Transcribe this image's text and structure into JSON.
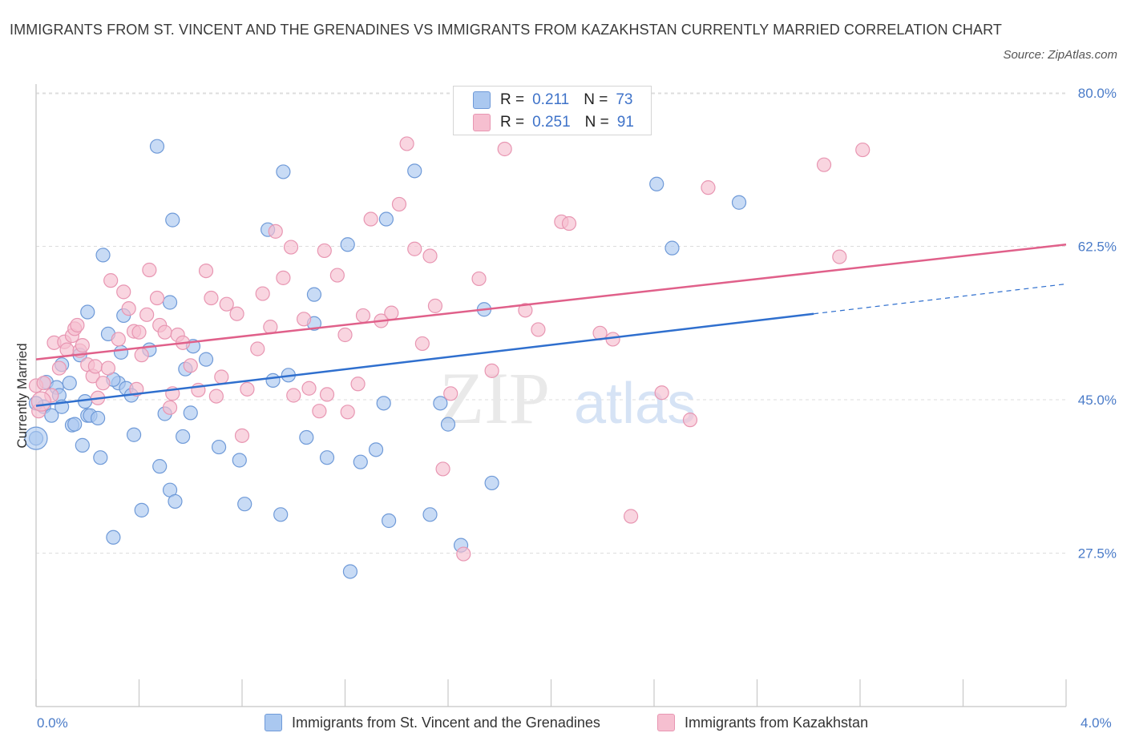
{
  "title": "IMMIGRANTS FROM ST. VINCENT AND THE GRENADINES VS IMMIGRANTS FROM KAZAKHSTAN CURRENTLY MARRIED CORRELATION CHART",
  "source": "Source: ZipAtlas.com",
  "watermark": {
    "zip": "ZIP",
    "atlas": "atlas"
  },
  "legend": {
    "blue": {
      "r_label": "R =",
      "r_value": "0.211",
      "n_label": "N =",
      "n_value": "73"
    },
    "pink": {
      "r_label": "R =",
      "r_value": "0.251",
      "n_label": "N =",
      "n_value": "91"
    }
  },
  "colors": {
    "blue_fill": "#aac8f0",
    "blue_stroke": "#6f9ad8",
    "blue_line": "#2f6fce",
    "pink_fill": "#f6bfd0",
    "pink_stroke": "#e896b2",
    "pink_line": "#e0608a",
    "tick_label": "#4a7bc8",
    "grid": "#dddddd"
  },
  "chart_data": {
    "type": "scatter",
    "title": "IMMIGRANTS FROM ST. VINCENT AND THE GRENADINES VS IMMIGRANTS FROM KAZAKHSTAN CURRENTLY MARRIED CORRELATION CHART",
    "xlabel": "",
    "ylabel": "Currently Married",
    "xlim": [
      0,
      4
    ],
    "ylim": [
      10,
      81
    ],
    "x_tick_labels": [
      "0.0%",
      "4.0%"
    ],
    "y_ticks": [
      80,
      62.5,
      45,
      27.5
    ],
    "y_tick_labels": [
      "80.0%",
      "62.5%",
      "45.0%",
      "27.5%"
    ],
    "grid": true,
    "legend_position": "top-center",
    "series": [
      {
        "name": "Immigrants from St. Vincent and the Grenadines",
        "color": "#aac8f0",
        "r": 0.211,
        "n": 73,
        "trend": {
          "x": [
            0.0,
            3.02
          ],
          "y": [
            44.3,
            54.8
          ],
          "dashed_to": [
            4.0,
            58.2
          ]
        },
        "points": [
          [
            0.0,
            40.6
          ],
          [
            0.03,
            44.2
          ],
          [
            0.04,
            47.0
          ],
          [
            0.06,
            43.2
          ],
          [
            0.08,
            46.4
          ],
          [
            0.09,
            45.5
          ],
          [
            0.1,
            44.2
          ],
          [
            0.13,
            46.9
          ],
          [
            0.14,
            42.1
          ],
          [
            0.15,
            42.2
          ],
          [
            0.17,
            50.1
          ],
          [
            0.18,
            39.8
          ],
          [
            0.19,
            44.8
          ],
          [
            0.2,
            43.2
          ],
          [
            0.21,
            43.2
          ],
          [
            0.24,
            42.9
          ],
          [
            0.25,
            38.4
          ],
          [
            0.26,
            61.5
          ],
          [
            0.28,
            52.5
          ],
          [
            0.3,
            29.3
          ],
          [
            0.32,
            46.9
          ],
          [
            0.33,
            50.4
          ],
          [
            0.34,
            54.6
          ],
          [
            0.35,
            46.3
          ],
          [
            0.37,
            45.5
          ],
          [
            0.41,
            32.4
          ],
          [
            0.44,
            50.7
          ],
          [
            0.47,
            73.9
          ],
          [
            0.48,
            37.4
          ],
          [
            0.5,
            43.4
          ],
          [
            0.52,
            56.1
          ],
          [
            0.52,
            34.7
          ],
          [
            0.53,
            65.5
          ],
          [
            0.54,
            33.4
          ],
          [
            0.57,
            40.8
          ],
          [
            0.58,
            48.5
          ],
          [
            0.6,
            43.5
          ],
          [
            0.61,
            51.1
          ],
          [
            0.66,
            49.6
          ],
          [
            0.71,
            39.6
          ],
          [
            0.79,
            38.1
          ],
          [
            0.81,
            33.1
          ],
          [
            0.9,
            64.4
          ],
          [
            0.92,
            47.2
          ],
          [
            0.95,
            31.9
          ],
          [
            0.96,
            71.0
          ],
          [
            0.98,
            47.8
          ],
          [
            1.05,
            40.7
          ],
          [
            1.08,
            57.0
          ],
          [
            1.08,
            53.7
          ],
          [
            1.13,
            38.4
          ],
          [
            1.21,
            62.7
          ],
          [
            1.22,
            25.4
          ],
          [
            1.26,
            37.9
          ],
          [
            1.32,
            39.3
          ],
          [
            1.35,
            44.6
          ],
          [
            1.36,
            65.6
          ],
          [
            1.37,
            31.2
          ],
          [
            1.47,
            71.1
          ],
          [
            1.53,
            31.9
          ],
          [
            1.57,
            44.6
          ],
          [
            1.6,
            42.2
          ],
          [
            1.65,
            28.4
          ],
          [
            1.74,
            55.3
          ],
          [
            1.77,
            35.5
          ],
          [
            2.41,
            69.6
          ],
          [
            2.47,
            62.3
          ],
          [
            2.73,
            67.5
          ],
          [
            0.0,
            44.6
          ],
          [
            0.1,
            49.0
          ],
          [
            0.2,
            55.0
          ],
          [
            0.3,
            47.3
          ],
          [
            0.38,
            41.0
          ]
        ]
      },
      {
        "name": "Immigrants from Kazakhstan",
        "color": "#f6bfd0",
        "r": 0.251,
        "n": 91,
        "trend": {
          "x": [
            0.0,
            4.0
          ],
          "y": [
            49.6,
            62.7
          ]
        },
        "points": [
          [
            0.0,
            46.6
          ],
          [
            0.01,
            43.7
          ],
          [
            0.03,
            46.9
          ],
          [
            0.06,
            45.5
          ],
          [
            0.07,
            51.5
          ],
          [
            0.09,
            48.6
          ],
          [
            0.11,
            51.6
          ],
          [
            0.12,
            50.7
          ],
          [
            0.14,
            52.3
          ],
          [
            0.15,
            53.1
          ],
          [
            0.16,
            53.5
          ],
          [
            0.17,
            50.6
          ],
          [
            0.18,
            51.2
          ],
          [
            0.2,
            49.0
          ],
          [
            0.22,
            47.7
          ],
          [
            0.23,
            48.8
          ],
          [
            0.24,
            45.2
          ],
          [
            0.26,
            46.9
          ],
          [
            0.28,
            48.6
          ],
          [
            0.29,
            58.6
          ],
          [
            0.32,
            51.9
          ],
          [
            0.34,
            57.3
          ],
          [
            0.36,
            55.4
          ],
          [
            0.38,
            52.8
          ],
          [
            0.39,
            46.2
          ],
          [
            0.4,
            52.7
          ],
          [
            0.41,
            50.1
          ],
          [
            0.43,
            54.7
          ],
          [
            0.44,
            59.8
          ],
          [
            0.47,
            56.6
          ],
          [
            0.48,
            53.5
          ],
          [
            0.5,
            52.7
          ],
          [
            0.52,
            44.1
          ],
          [
            0.53,
            45.7
          ],
          [
            0.55,
            52.4
          ],
          [
            0.57,
            51.5
          ],
          [
            0.6,
            48.9
          ],
          [
            0.63,
            46.1
          ],
          [
            0.66,
            59.7
          ],
          [
            0.68,
            56.6
          ],
          [
            0.7,
            45.4
          ],
          [
            0.72,
            47.6
          ],
          [
            0.74,
            55.9
          ],
          [
            0.78,
            54.8
          ],
          [
            0.8,
            40.9
          ],
          [
            0.82,
            46.2
          ],
          [
            0.86,
            50.8
          ],
          [
            0.88,
            57.1
          ],
          [
            0.91,
            53.3
          ],
          [
            0.93,
            64.2
          ],
          [
            0.96,
            58.9
          ],
          [
            0.99,
            62.4
          ],
          [
            1.0,
            45.5
          ],
          [
            1.04,
            54.2
          ],
          [
            1.06,
            46.3
          ],
          [
            1.1,
            43.7
          ],
          [
            1.12,
            62.0
          ],
          [
            1.13,
            45.6
          ],
          [
            1.17,
            59.2
          ],
          [
            1.2,
            52.4
          ],
          [
            1.21,
            43.6
          ],
          [
            1.25,
            46.8
          ],
          [
            1.27,
            54.6
          ],
          [
            1.3,
            65.6
          ],
          [
            1.34,
            54.0
          ],
          [
            1.38,
            54.9
          ],
          [
            1.41,
            67.3
          ],
          [
            1.44,
            74.2
          ],
          [
            1.47,
            62.2
          ],
          [
            1.5,
            51.4
          ],
          [
            1.53,
            61.4
          ],
          [
            1.55,
            55.7
          ],
          [
            1.58,
            37.1
          ],
          [
            1.61,
            45.7
          ],
          [
            1.66,
            27.4
          ],
          [
            1.72,
            58.8
          ],
          [
            1.77,
            48.3
          ],
          [
            1.82,
            73.6
          ],
          [
            1.9,
            55.2
          ],
          [
            1.95,
            53.0
          ],
          [
            2.04,
            65.3
          ],
          [
            2.07,
            65.1
          ],
          [
            2.19,
            52.6
          ],
          [
            2.24,
            51.9
          ],
          [
            2.31,
            31.7
          ],
          [
            2.43,
            45.8
          ],
          [
            2.54,
            42.7
          ],
          [
            2.61,
            69.2
          ],
          [
            3.06,
            71.8
          ],
          [
            3.12,
            61.3
          ],
          [
            3.21,
            73.5
          ]
        ]
      }
    ]
  }
}
